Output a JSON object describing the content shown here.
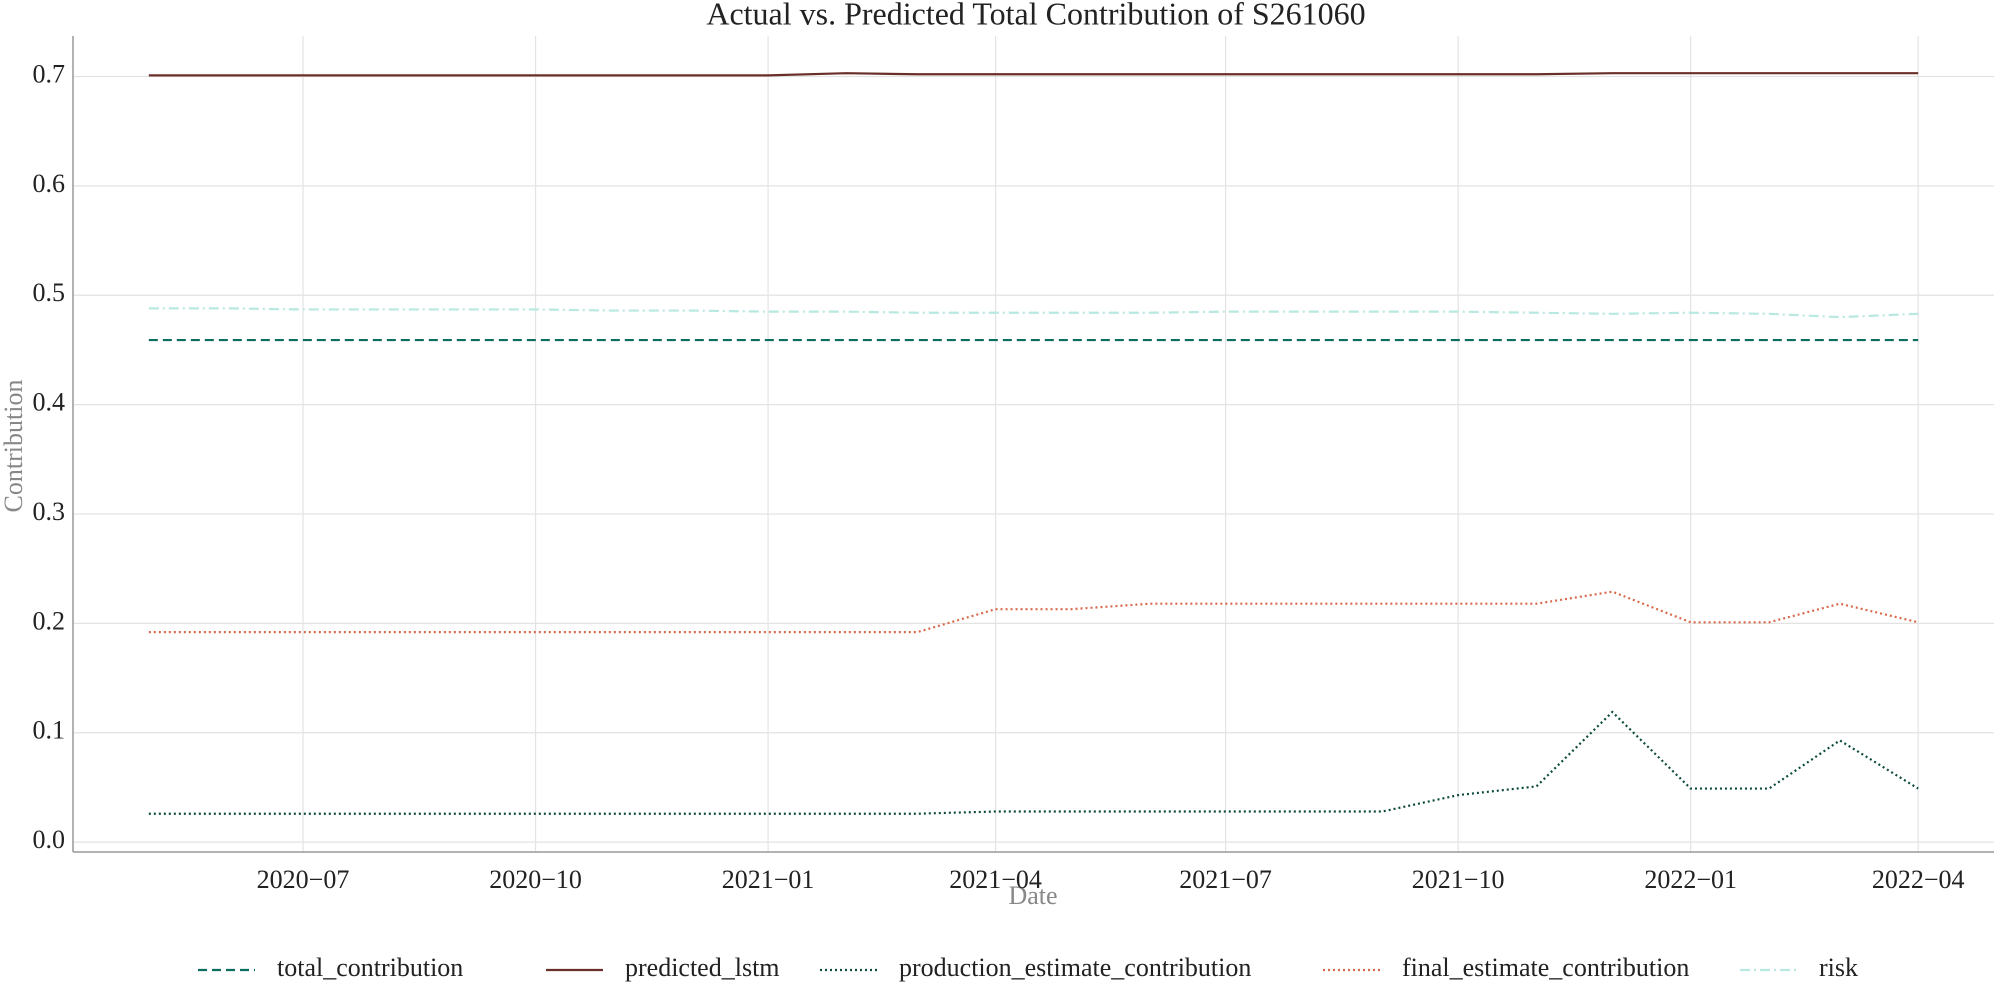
{
  "chart_data": {
    "type": "line",
    "title": "Actual vs. Predicted Total Contribution of S261060",
    "x_label": "Date",
    "y_label": "Contribution",
    "x": [
      "2020-05",
      "2020-06",
      "2020-07",
      "2020-08",
      "2020-09",
      "2020-10",
      "2020-11",
      "2020-12",
      "2021-01",
      "2021-02",
      "2021-03",
      "2021-04",
      "2021-05",
      "2021-06",
      "2021-07",
      "2021-08",
      "2021-09",
      "2021-10",
      "2021-11",
      "2021-12",
      "2022-01",
      "2022-02",
      "2022-03",
      "2022-04"
    ],
    "series": [
      {
        "name": "total_contribution",
        "color": "#0b6e5e",
        "dash": "dashed",
        "values": [
          0.459,
          0.459,
          0.459,
          0.459,
          0.459,
          0.459,
          0.459,
          0.459,
          0.459,
          0.459,
          0.459,
          0.459,
          0.459,
          0.459,
          0.459,
          0.459,
          0.459,
          0.459,
          0.459,
          0.459,
          0.459,
          0.459,
          0.459,
          0.459
        ]
      },
      {
        "name": "predicted_lstm",
        "color": "#6b2f2a",
        "dash": "solid",
        "values": [
          0.701,
          0.701,
          0.701,
          0.701,
          0.701,
          0.701,
          0.701,
          0.701,
          0.701,
          0.703,
          0.702,
          0.702,
          0.702,
          0.702,
          0.702,
          0.702,
          0.702,
          0.702,
          0.702,
          0.703,
          0.703,
          0.703,
          0.703,
          0.703
        ]
      },
      {
        "name": "production_estimate_contribution",
        "color": "#0c4a3e",
        "dash": "dotted",
        "values": [
          0.026,
          0.026,
          0.026,
          0.026,
          0.026,
          0.026,
          0.026,
          0.026,
          0.026,
          0.026,
          0.026,
          0.028,
          0.028,
          0.028,
          0.028,
          0.028,
          0.028,
          0.043,
          0.051,
          0.119,
          0.049,
          0.049,
          0.093,
          0.049
        ]
      },
      {
        "name": "final_estimate_contribution",
        "color": "#d9694a",
        "dash": "dotted",
        "values": [
          0.192,
          0.192,
          0.192,
          0.192,
          0.192,
          0.192,
          0.192,
          0.192,
          0.192,
          0.192,
          0.192,
          0.213,
          0.213,
          0.218,
          0.218,
          0.218,
          0.218,
          0.218,
          0.218,
          0.229,
          0.201,
          0.201,
          0.218,
          0.201
        ]
      },
      {
        "name": "risk",
        "color": "#b8e8e0",
        "dash": "dashdot",
        "values": [
          0.488,
          0.488,
          0.487,
          0.487,
          0.487,
          0.487,
          0.486,
          0.486,
          0.485,
          0.485,
          0.484,
          0.484,
          0.484,
          0.484,
          0.485,
          0.485,
          0.485,
          0.485,
          0.484,
          0.483,
          0.484,
          0.483,
          0.48,
          0.483
        ]
      }
    ],
    "xlim": [
      "2020-04",
      "2022-05"
    ],
    "xticks": [
      {
        "value": "2020-07",
        "label": "2020−07"
      },
      {
        "value": "2020-10",
        "label": "2020−10"
      },
      {
        "value": "2021-01",
        "label": "2021−01"
      },
      {
        "value": "2021-04",
        "label": "2021−04"
      },
      {
        "value": "2021-07",
        "label": "2021−07"
      },
      {
        "value": "2021-10",
        "label": "2021−10"
      },
      {
        "value": "2022-01",
        "label": "2022−01"
      },
      {
        "value": "2022-04",
        "label": "2022−04"
      }
    ],
    "ylim": [
      -0.009,
      0.737
    ],
    "yticks": [
      {
        "value": 0,
        "label": "0.0"
      },
      0.1,
      0.2,
      0.3,
      0.4,
      0.5,
      0.6,
      0.7
    ],
    "grid": true,
    "legend": "bottom"
  }
}
